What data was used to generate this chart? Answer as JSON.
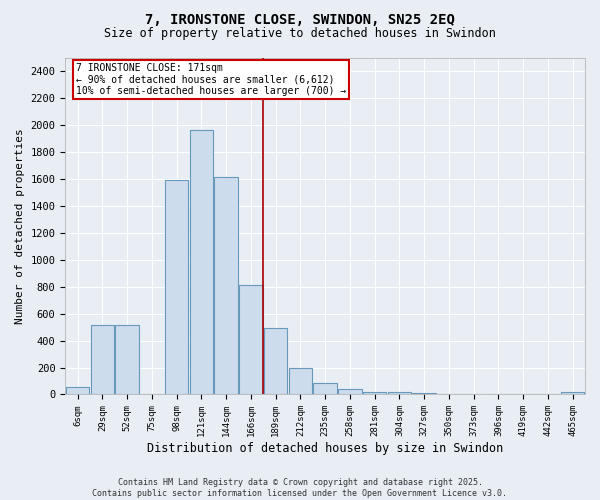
{
  "title": "7, IRONSTONE CLOSE, SWINDON, SN25 2EQ",
  "subtitle": "Size of property relative to detached houses in Swindon",
  "xlabel": "Distribution of detached houses by size in Swindon",
  "ylabel": "Number of detached properties",
  "categories": [
    "6sqm",
    "29sqm",
    "52sqm",
    "75sqm",
    "98sqm",
    "121sqm",
    "144sqm",
    "166sqm",
    "189sqm",
    "212sqm",
    "235sqm",
    "258sqm",
    "281sqm",
    "304sqm",
    "327sqm",
    "350sqm",
    "373sqm",
    "396sqm",
    "419sqm",
    "442sqm",
    "465sqm"
  ],
  "values": [
    55,
    515,
    515,
    0,
    1590,
    1960,
    1610,
    810,
    490,
    195,
    85,
    38,
    22,
    15,
    8,
    0,
    0,
    0,
    0,
    0,
    18
  ],
  "bar_color": "#ccdcec",
  "bar_edge_color": "#6699bb",
  "vline_x_index": 7.5,
  "vline_color": "#aa0000",
  "annotation_text": "7 IRONSTONE CLOSE: 171sqm\n← 90% of detached houses are smaller (6,612)\n10% of semi-detached houses are larger (700) →",
  "annotation_box_color": "#cc0000",
  "annotation_text_color": "#000000",
  "annotation_bg_color": "#ffffff",
  "ylim": [
    0,
    2500
  ],
  "yticks": [
    0,
    200,
    400,
    600,
    800,
    1000,
    1200,
    1400,
    1600,
    1800,
    2000,
    2200,
    2400
  ],
  "footer_line1": "Contains HM Land Registry data © Crown copyright and database right 2025.",
  "footer_line2": "Contains public sector information licensed under the Open Government Licence v3.0.",
  "bg_color": "#e8eef4",
  "grid_color": "#ffffff",
  "font_family": "monospace"
}
